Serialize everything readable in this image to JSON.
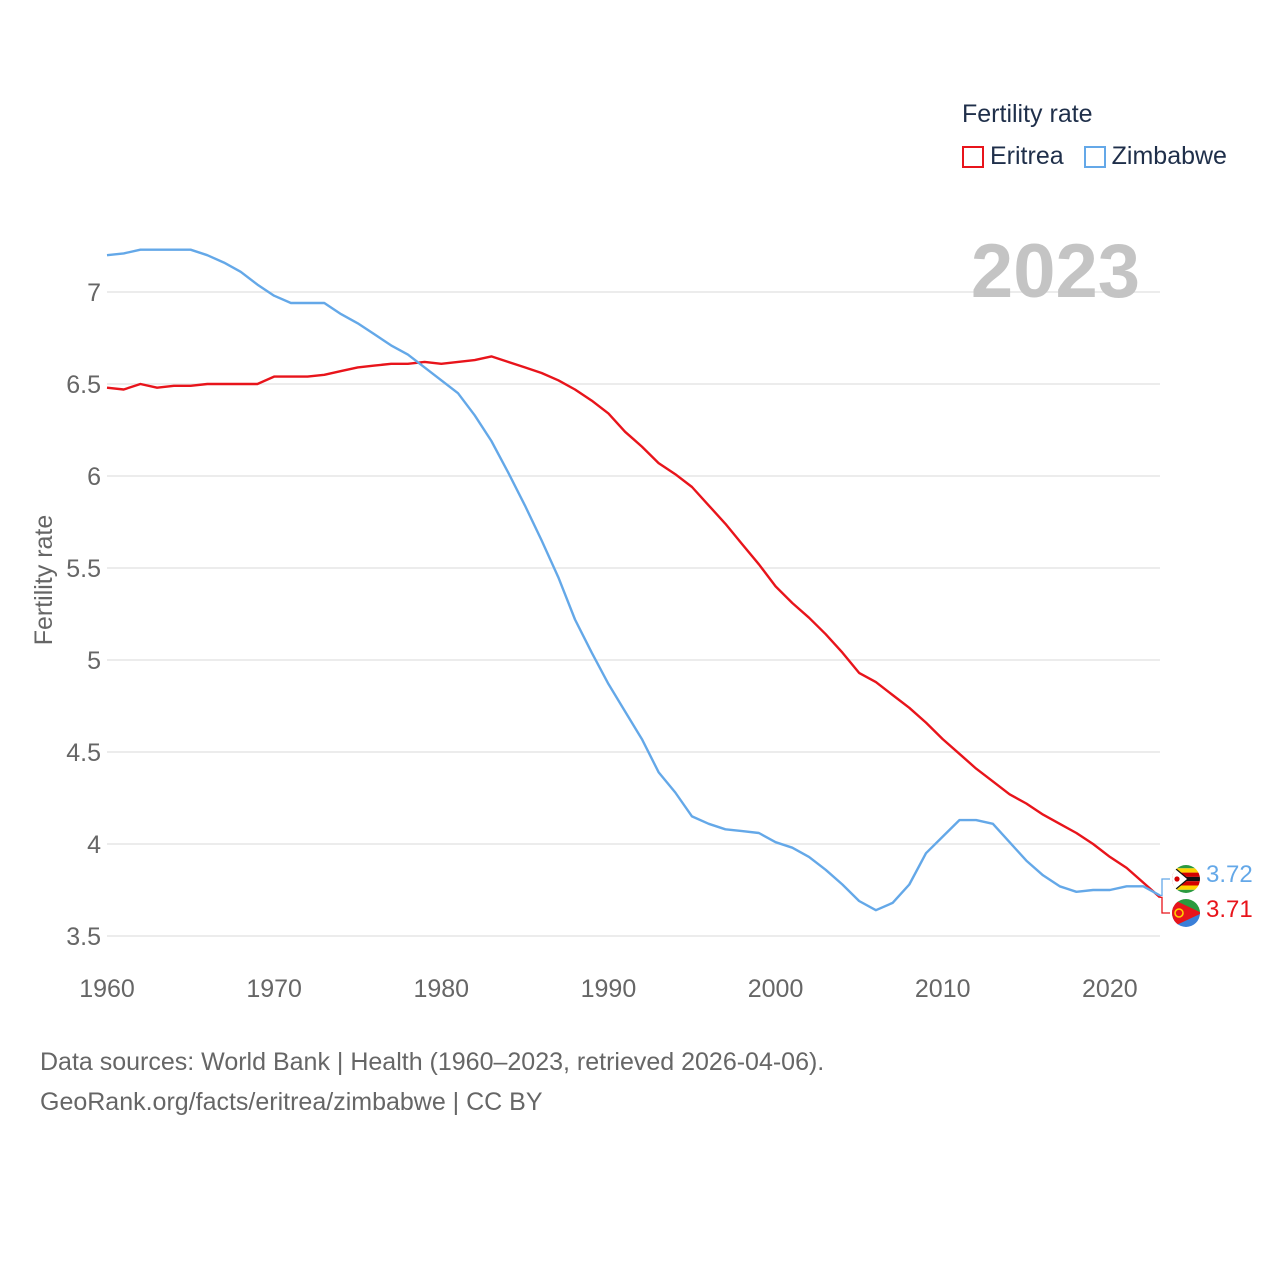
{
  "legend": {
    "title": "Fertility rate",
    "items": [
      {
        "label": "Eritrea",
        "color": "#e8141b"
      },
      {
        "label": "Zimbabwe",
        "color": "#64a8e8"
      }
    ]
  },
  "year_label": "2023",
  "footer": {
    "line1": "Data sources: World Bank | Health (1960–2023, retrieved 2026-04-06).",
    "line2": "GeoRank.org/facts/eritrea/zimbabwe | CC BY"
  },
  "end_labels": {
    "zimbabwe": "3.72",
    "eritrea": "3.71",
    "zimbabwe_flag": "zimbabwe-flag-icon",
    "eritrea_flag": "eritrea-flag-icon"
  },
  "chart_data": {
    "type": "line",
    "title": "",
    "xlabel": "",
    "ylabel": "Fertility rate",
    "xlim": [
      1960,
      2023
    ],
    "ylim": [
      3.5,
      7.35
    ],
    "xticks": [
      1960,
      1970,
      1980,
      1990,
      2000,
      2010,
      2020
    ],
    "yticks": [
      3.5,
      4,
      4.5,
      5,
      5.5,
      6,
      6.5,
      7
    ],
    "ytick_labels": [
      "3.5",
      "4",
      "4.5",
      "5",
      "5.5",
      "6",
      "6.5",
      "7"
    ],
    "grid": true,
    "legend_position": "top-right",
    "x": [
      1960,
      1961,
      1962,
      1963,
      1964,
      1965,
      1966,
      1967,
      1968,
      1969,
      1970,
      1971,
      1972,
      1973,
      1974,
      1975,
      1976,
      1977,
      1978,
      1979,
      1980,
      1981,
      1982,
      1983,
      1984,
      1985,
      1986,
      1987,
      1988,
      1989,
      1990,
      1991,
      1992,
      1993,
      1994,
      1995,
      1996,
      1997,
      1998,
      1999,
      2000,
      2001,
      2002,
      2003,
      2004,
      2005,
      2006,
      2007,
      2008,
      2009,
      2010,
      2011,
      2012,
      2013,
      2014,
      2015,
      2016,
      2017,
      2018,
      2019,
      2020,
      2021,
      2022,
      2023
    ],
    "series": [
      {
        "name": "Eritrea",
        "color": "#e8141b",
        "values": [
          6.48,
          6.47,
          6.5,
          6.48,
          6.49,
          6.49,
          6.5,
          6.5,
          6.5,
          6.5,
          6.54,
          6.54,
          6.54,
          6.55,
          6.57,
          6.59,
          6.6,
          6.61,
          6.61,
          6.62,
          6.61,
          6.62,
          6.63,
          6.65,
          6.62,
          6.59,
          6.56,
          6.52,
          6.47,
          6.41,
          6.34,
          6.24,
          6.16,
          6.07,
          6.01,
          5.94,
          5.84,
          5.74,
          5.63,
          5.52,
          5.4,
          5.31,
          5.23,
          5.14,
          5.04,
          4.93,
          4.88,
          4.81,
          4.74,
          4.66,
          4.57,
          4.49,
          4.41,
          4.34,
          4.27,
          4.22,
          4.16,
          4.11,
          4.06,
          4.0,
          3.93,
          3.87,
          3.79,
          3.71
        ]
      },
      {
        "name": "Zimbabwe",
        "color": "#64a8e8",
        "values": [
          7.2,
          7.21,
          7.23,
          7.23,
          7.23,
          7.23,
          7.2,
          7.16,
          7.11,
          7.04,
          6.98,
          6.94,
          6.94,
          6.94,
          6.88,
          6.83,
          6.77,
          6.71,
          6.66,
          6.59,
          6.52,
          6.45,
          6.33,
          6.19,
          6.02,
          5.84,
          5.65,
          5.45,
          5.22,
          5.04,
          4.87,
          4.72,
          4.57,
          4.39,
          4.28,
          4.15,
          4.11,
          4.08,
          4.07,
          4.06,
          4.01,
          3.98,
          3.93,
          3.86,
          3.78,
          3.69,
          3.64,
          3.68,
          3.78,
          3.95,
          4.04,
          4.13,
          4.13,
          4.11,
          4.01,
          3.91,
          3.83,
          3.77,
          3.74,
          3.75,
          3.75,
          3.77,
          3.77,
          3.72
        ]
      }
    ]
  }
}
